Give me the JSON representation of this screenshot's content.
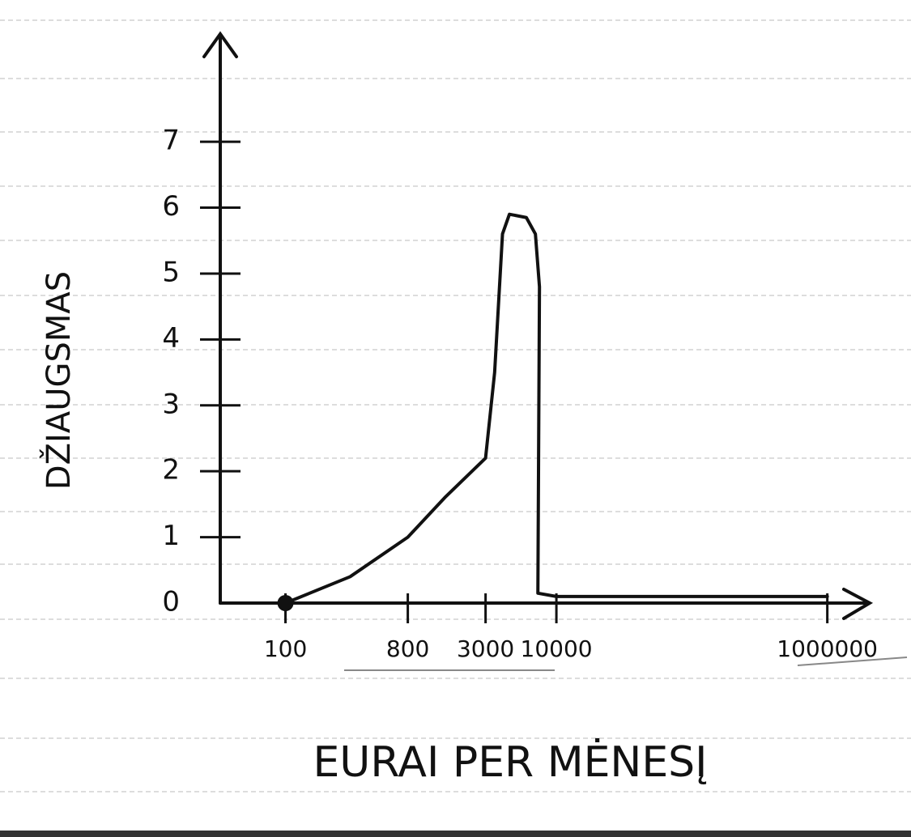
{
  "chart_data": {
    "type": "line",
    "y_label": "DŽIAUGSMAS",
    "x_label": "EURAI PER MĖNESĮ",
    "x": [
      100,
      300,
      800,
      1500,
      3000,
      3500,
      4000,
      4500,
      6000,
      7000,
      7500,
      7300,
      10000,
      1000000
    ],
    "values": [
      0,
      0.4,
      1.0,
      1.6,
      2.2,
      3.5,
      5.6,
      5.9,
      5.85,
      5.6,
      4.8,
      0.15,
      0.1,
      0.1
    ],
    "color": "#111111",
    "xscale": "log",
    "xlim": [
      33,
      2000000
    ],
    "xticks": [
      100,
      800,
      3000,
      10000,
      1000000
    ],
    "ylim": [
      0,
      8.5
    ],
    "yticks": [
      0,
      1,
      2,
      3,
      4,
      5,
      6,
      7
    ],
    "grid": false
  }
}
